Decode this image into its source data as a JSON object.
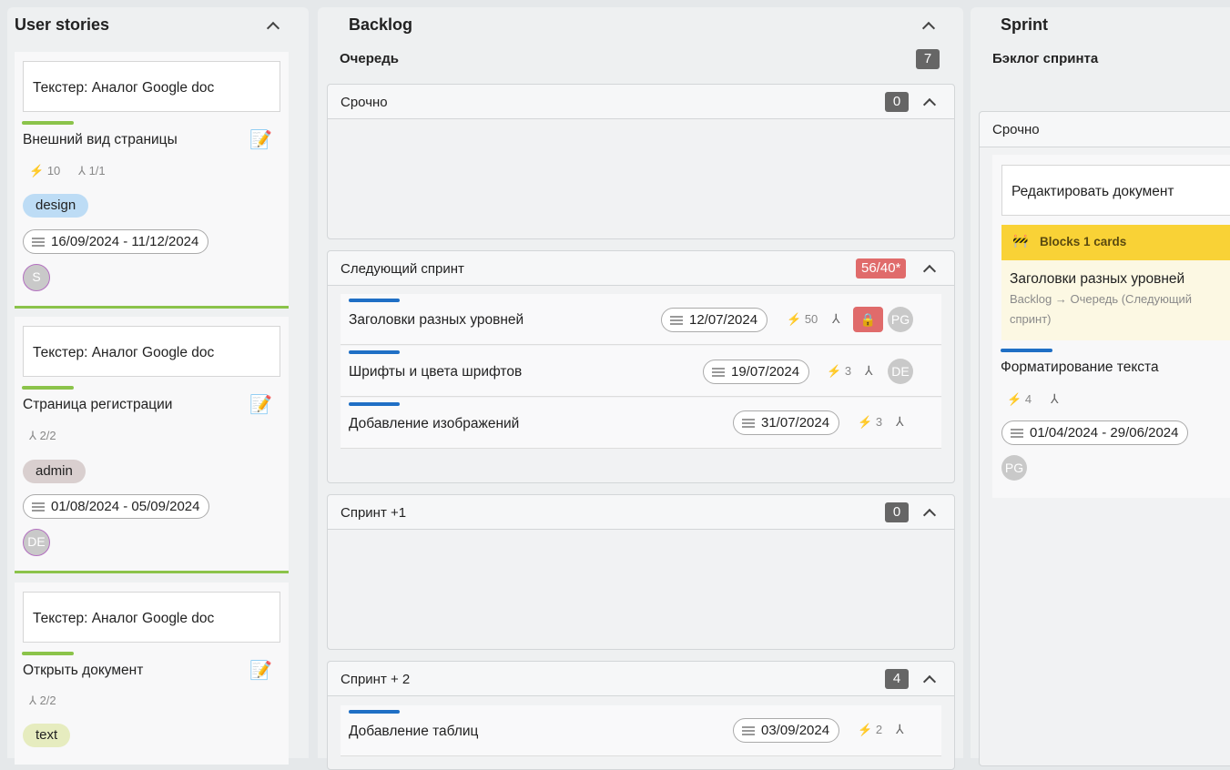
{
  "stories": {
    "title": "User stories",
    "cards": [
      {
        "epic": "Текстер: Аналог Google doc",
        "title": "Внешний вид страницы",
        "points": "10",
        "subtasks": "1/1",
        "tag": "design",
        "dates": "16/09/2024 - 11/12/2024",
        "avatar": "S"
      },
      {
        "epic": "Текстер: Аналог Google doc",
        "title": "Страница регистрации",
        "subtasks": "2/2",
        "tag": "admin",
        "dates": "01/08/2024 - 05/09/2024",
        "avatar": "DE"
      },
      {
        "epic": "Текстер: Аналог Google doc",
        "title": "Открыть документ",
        "subtasks": "2/2",
        "tag": "text"
      }
    ]
  },
  "backlog": {
    "title": "Backlog",
    "queue": "Очередь",
    "queue_count": "7",
    "sections": [
      {
        "title": "Срочно",
        "count": "0"
      },
      {
        "title": "Следующий спринт",
        "count": "56/40*",
        "rows": [
          {
            "title": "Заголовки разных уровней",
            "date": "12/07/2024",
            "points": "50",
            "avatar": "PG",
            "locked": true
          },
          {
            "title": "Шрифты и цвета шрифтов",
            "date": "19/07/2024",
            "points": "3",
            "avatar": "DE"
          },
          {
            "title": "Добавление изображений",
            "date": "31/07/2024",
            "points": "3"
          }
        ]
      },
      {
        "title": "Спринт +1",
        "count": "0"
      },
      {
        "title": "Спринт + 2",
        "count": "4",
        "rows": [
          {
            "title": "Добавление таблиц",
            "date": "03/09/2024",
            "points": "2"
          }
        ]
      }
    ]
  },
  "sprint": {
    "title": "Sprint",
    "sub": "Бэклог спринта",
    "section": "Срочно",
    "card": {
      "epic": "Редактировать документ",
      "blocks": "Blocks 1 cards",
      "blocked_title": "Заголовки разных уровней",
      "blocked_path": "Backlog → Очередь (Следующий спринт)",
      "title": "Форматирование текста",
      "points": "4",
      "dates": "01/04/2024 - 29/06/2024",
      "avatar": "PG"
    }
  },
  "colors": {
    "story_accent": "#8bc34a",
    "task_accent": "#1f6fc5",
    "over_limit": "#e06b6b",
    "blocks_banner": "#f9d236",
    "design": "#bddcf5",
    "admin": "#d9cfcf",
    "text": "#e6ecbf"
  }
}
